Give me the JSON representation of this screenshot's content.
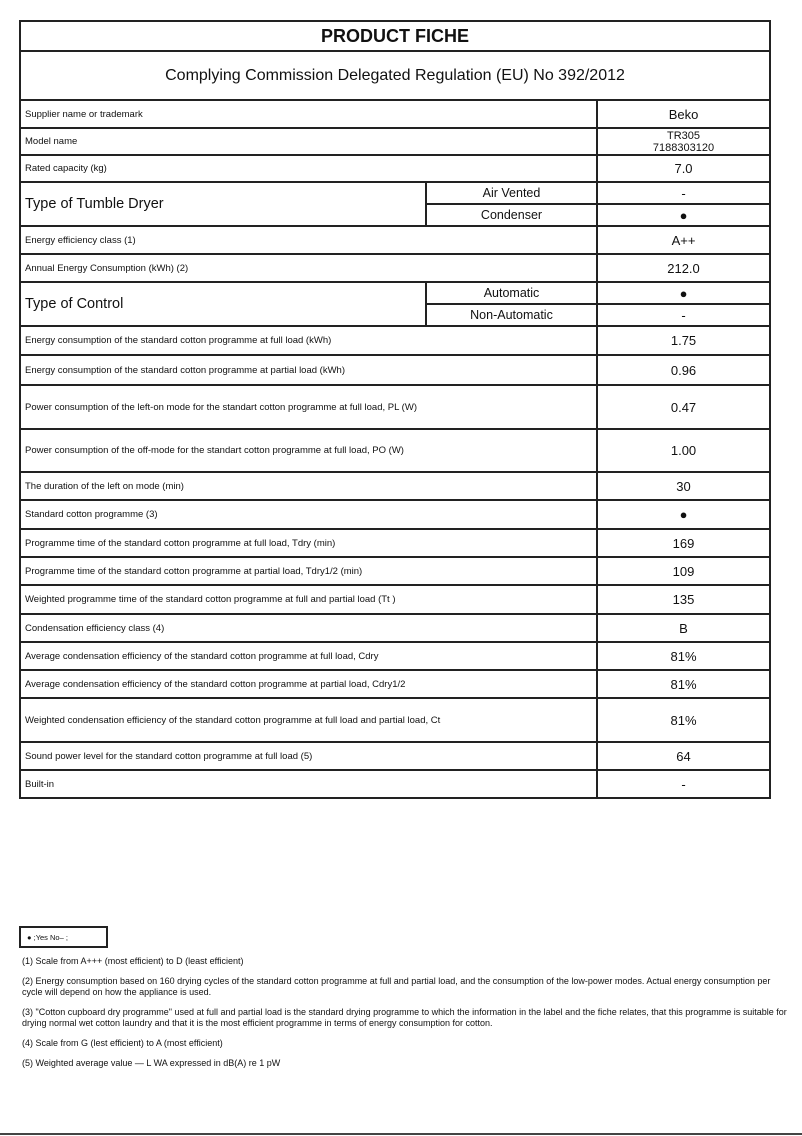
{
  "title": "PRODUCT FICHE",
  "subtitle": "Complying Commission Delegated Regulation (EU) No 392/2012",
  "rows": [
    {
      "label": "Supplier name or trademark",
      "value": "Beko"
    },
    {
      "label": "Model name",
      "value": "TR305",
      "value2": "7188303120"
    },
    {
      "label": "Rated capacity (kg)",
      "value": "7.0"
    },
    {
      "label": "Type of Tumble Dryer",
      "group": true,
      "options": [
        {
          "label": "Air Vented",
          "value": "-"
        },
        {
          "label": "Condenser",
          "value": "●"
        }
      ]
    },
    {
      "label": "Energy efficiency class (1)",
      "value": "A++"
    },
    {
      "label": "Annual Energy Consumption (kWh) (2)",
      "value": "212.0"
    },
    {
      "label": "Type of Control",
      "group": true,
      "options": [
        {
          "label": "Automatic",
          "value": "●"
        },
        {
          "label": "Non-Automatic",
          "value": "-"
        }
      ]
    },
    {
      "label": "Energy consumption of the standard cotton programme at full load (kWh)",
      "value": "1.75"
    },
    {
      "label": "Energy consumption of the standard cotton programme at partial load (kWh)",
      "value": "0.96"
    },
    {
      "label": "Power consumption of the left-on mode for the standart cotton programme at full load, PL (W)",
      "value": "0.47"
    },
    {
      "label": "Power consumption of the off-mode for the standart cotton programme at full load, PO (W)",
      "value": "1.00"
    },
    {
      "label": "The duration of the left on mode (min)",
      "value": "30"
    },
    {
      "label": "Standard cotton programme (3)",
      "value": "●"
    },
    {
      "label": "Programme time of the standard cotton programme at full load, Tdry (min)",
      "value": "169"
    },
    {
      "label": "Programme time of the standard cotton programme at partial load, Tdry1/2 (min)",
      "value": "109"
    },
    {
      "label": "Weighted programme time of the standard cotton programme at full and partial load (Tt )",
      "value": "135"
    },
    {
      "label": "Condensation efficiency class (4)",
      "value": "B"
    },
    {
      "label": "Average condensation efficiency of the standard cotton programme at full load, Cdry",
      "value": "81%"
    },
    {
      "label": "Average condensation efficiency of the standard cotton programme at partial load, Cdry1/2",
      "value": "81%"
    },
    {
      "label": "Weighted condensation efficiency of the standard cotton programme at full load and partial load, Ct",
      "value": "81%"
    },
    {
      "label": "Sound power level for the standard cotton programme at full load (5)",
      "value": "64"
    },
    {
      "label": "Built-in",
      "value": "-"
    }
  ],
  "legend": "● ;Yes No‒ ;",
  "notes": [
    "(1) Scale from A+++ (most efficient) to D (least efficient)",
    "(2) Energy consumption based on 160 drying cycles of the standard cotton programme at full and partial load, and the consumption of the low-power modes. Actual energy consumption per cycle will depend on how the appliance is used.",
    "(3) \"Cotton cupboard dry programme\" used at full and partial load is the standard drying programme to which the information  in the label and the fiche relates, that this programme is suitable for drying normal wet cotton laundry and that it is the most efficient programme in terms of energy consumption for cotton.",
    "(4) Scale from G (lest efficient) to A (most efficient)",
    "(5) Weighted average value — L WA    expressed in dB(A) re 1 pW"
  ]
}
